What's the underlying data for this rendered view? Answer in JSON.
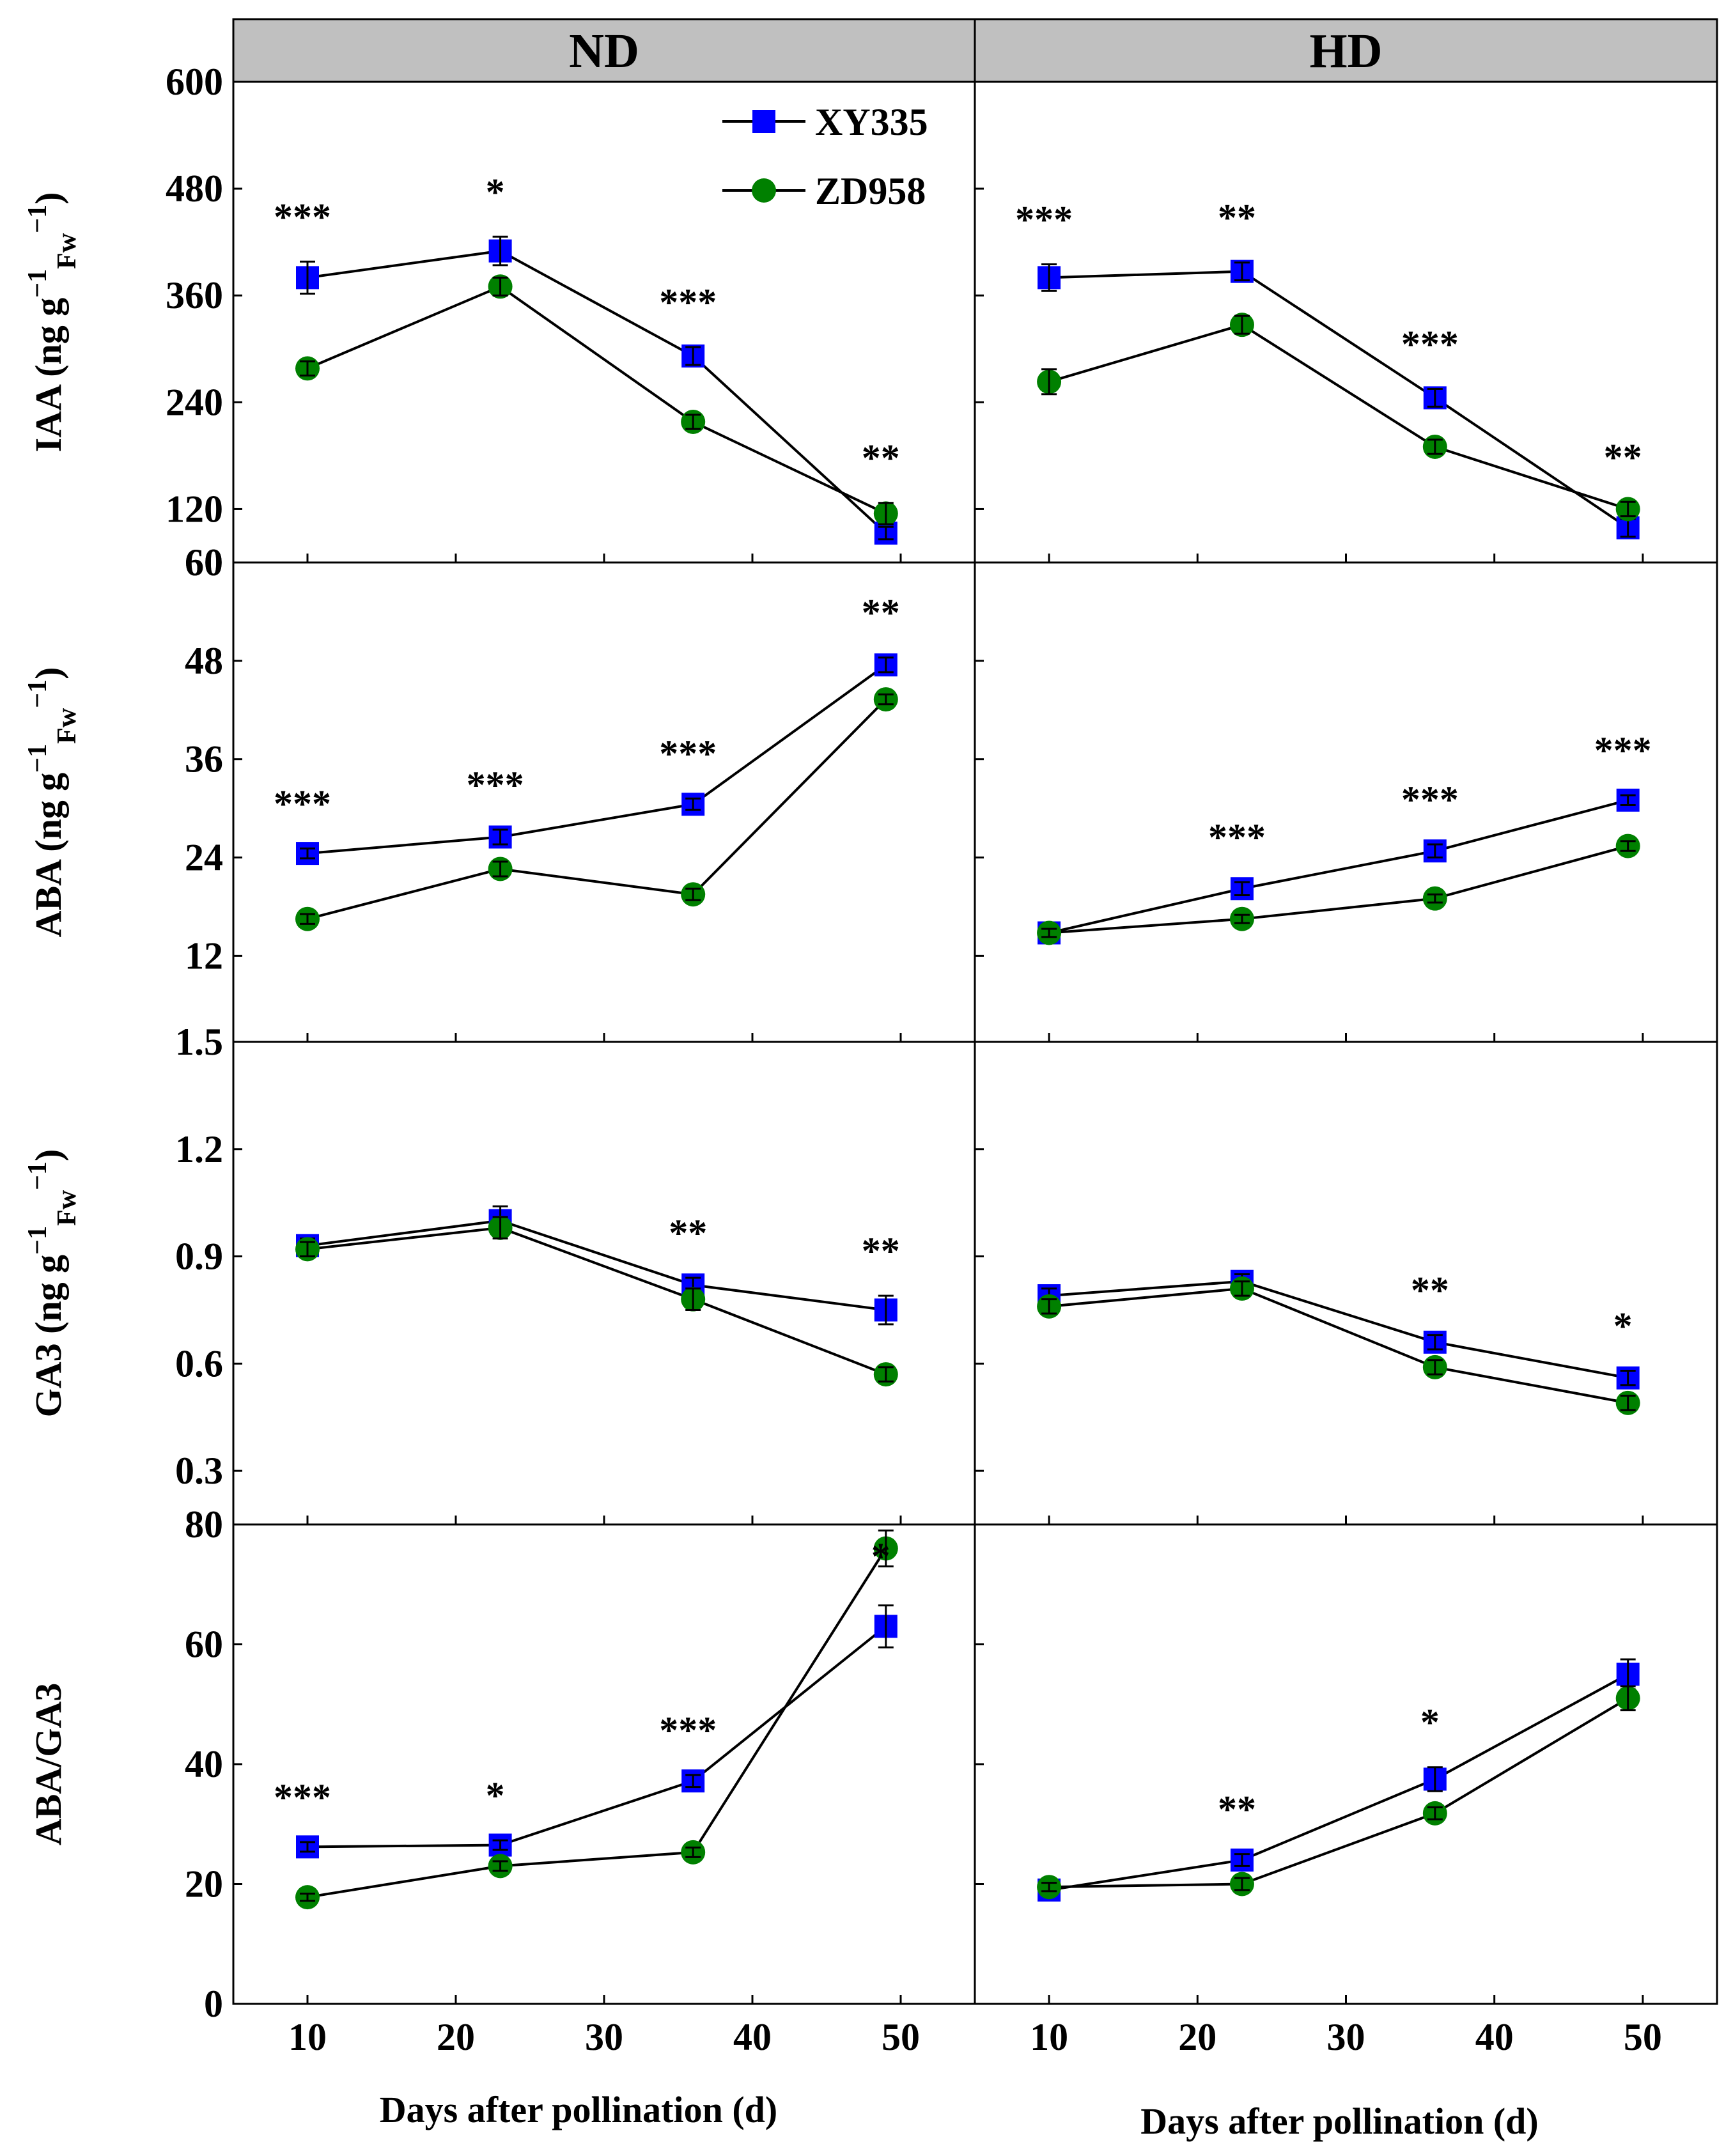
{
  "chart_data": {
    "type": "line",
    "xlabel": "Days after pollination (d)",
    "x": [
      10,
      23,
      36,
      49
    ],
    "x_ticks": [
      10,
      20,
      30,
      40,
      50
    ],
    "xlim": [
      5,
      55
    ],
    "columns": [
      {
        "key": "ND",
        "title": "ND"
      },
      {
        "key": "HD",
        "title": "HD"
      }
    ],
    "legend": {
      "position": "top-right of first panel",
      "entries": [
        {
          "name": "XY335",
          "marker": "square",
          "color": "#0000ff"
        },
        {
          "name": "ZD958",
          "marker": "circle",
          "color": "#008000"
        }
      ]
    },
    "rows": [
      {
        "key": "IAA",
        "ylabel_main": "IAA (ng g",
        "ylabel_sup": "−1",
        "ylabel_sub": "Fw",
        "ylabel_sup2": "−1",
        "ylabel_end": ")",
        "ylim": [
          60,
          600
        ],
        "y_ticks": [
          60,
          120,
          240,
          360,
          480,
          600
        ],
        "y_tick_labels": [
          "60",
          "120",
          "240",
          "360",
          "480",
          "600"
        ],
        "panels": {
          "ND": {
            "series": [
              {
                "name": "XY335",
                "values": [
                  380,
                  410,
                  292,
                  93
                ],
                "errors": [
                  18,
                  16,
                  10,
                  7
                ]
              },
              {
                "name": "ZD958",
                "values": [
                  278,
                  370,
                  218,
                  115
                ],
                "errors": [
                  8,
                  10,
                  8,
                  12
                ]
              }
            ],
            "significance": [
              "***",
              "*",
              "***",
              "**"
            ]
          },
          "HD": {
            "series": [
              {
                "name": "XY335",
                "values": [
                  380,
                  387,
                  245,
                  99
                ],
                "errors": [
                  15,
                  10,
                  10,
                  10
                ]
              },
              {
                "name": "ZD958",
                "values": [
                  263,
                  327,
                  190,
                  120
                ],
                "errors": [
                  14,
                  10,
                  8,
                  8
                ]
              }
            ],
            "significance": [
              "***",
              "**",
              "***",
              "**"
            ]
          }
        }
      },
      {
        "key": "ABA",
        "ylabel_main": "ABA (ng g",
        "ylabel_sup": "−1",
        "ylabel_sub": "Fw",
        "ylabel_sup2": "−1",
        "ylabel_end": ")",
        "ylim": [
          1.5,
          60
        ],
        "y_ticks": [
          12,
          24,
          36,
          48,
          60
        ],
        "y_tick_labels": [
          "12",
          "24",
          "36",
          "48",
          "60"
        ],
        "panels": {
          "ND": {
            "series": [
              {
                "name": "XY335",
                "values": [
                  24.5,
                  26.5,
                  30.5,
                  47.5
                ],
                "errors": [
                  0.6,
                  0.9,
                  0.7,
                  0.9
                ]
              },
              {
                "name": "ZD958",
                "values": [
                  16.5,
                  22.6,
                  19.5,
                  43.3
                ],
                "errors": [
                  0.6,
                  0.9,
                  0.7,
                  0.6
                ]
              }
            ],
            "significance": [
              "***",
              "***",
              "***",
              "**"
            ]
          },
          "HD": {
            "series": [
              {
                "name": "XY335",
                "values": [
                  14.8,
                  20.2,
                  24.8,
                  31.0
                ],
                "errors": [
                  0.5,
                  0.8,
                  0.8,
                  0.6
                ]
              },
              {
                "name": "ZD958",
                "values": [
                  14.8,
                  16.5,
                  19.0,
                  25.4
                ],
                "errors": [
                  0.5,
                  0.5,
                  0.5,
                  0.6
                ]
              }
            ],
            "significance": [
              "",
              "***",
              "***",
              "***"
            ]
          }
        }
      },
      {
        "key": "GA3",
        "ylabel_main": "GA3 (ng g",
        "ylabel_sup": "−1",
        "ylabel_sub": "Fw",
        "ylabel_sup2": "−1",
        "ylabel_end": ")",
        "ylim": [
          0.15,
          1.5
        ],
        "y_ticks": [
          0.3,
          0.6,
          0.9,
          1.2,
          1.5
        ],
        "y_tick_labels": [
          "0.3",
          "0.6",
          "0.9",
          "1.2",
          "1.5"
        ],
        "panels": {
          "ND": {
            "series": [
              {
                "name": "XY335",
                "values": [
                  0.93,
                  1.0,
                  0.82,
                  0.75
                ],
                "errors": [
                  0.02,
                  0.04,
                  0.02,
                  0.04
                ]
              },
              {
                "name": "ZD958",
                "values": [
                  0.92,
                  0.98,
                  0.78,
                  0.57
                ],
                "errors": [
                  0.02,
                  0.03,
                  0.03,
                  0.02
                ]
              }
            ],
            "significance": [
              "",
              "",
              "**",
              "**"
            ]
          },
          "HD": {
            "series": [
              {
                "name": "XY335",
                "values": [
                  0.79,
                  0.83,
                  0.66,
                  0.56
                ],
                "errors": [
                  0.02,
                  0.02,
                  0.02,
                  0.02
                ]
              },
              {
                "name": "ZD958",
                "values": [
                  0.76,
                  0.81,
                  0.59,
                  0.49
                ],
                "errors": [
                  0.02,
                  0.02,
                  0.02,
                  0.02
                ]
              }
            ],
            "significance": [
              "",
              "",
              "**",
              "*"
            ]
          }
        }
      },
      {
        "key": "ABA/GA3",
        "ylabel_main": "ABA/GA3",
        "ylabel_sup": "",
        "ylabel_sub": "",
        "ylabel_sup2": "",
        "ylabel_end": "",
        "ylim": [
          0,
          80
        ],
        "y_ticks": [
          0,
          20,
          40,
          60,
          80
        ],
        "y_tick_labels": [
          "0",
          "20",
          "40",
          "60",
          "80"
        ],
        "panels": {
          "ND": {
            "series": [
              {
                "name": "XY335",
                "values": [
                  26.2,
                  26.5,
                  37.2,
                  63.0
                ],
                "errors": [
                  0.8,
                  0.8,
                  1.0,
                  3.5
                ]
              },
              {
                "name": "ZD958",
                "values": [
                  17.8,
                  23.0,
                  25.3,
                  76.0
                ],
                "errors": [
                  0.6,
                  0.8,
                  0.8,
                  3.0
                ]
              }
            ],
            "significance": [
              "***",
              "*",
              "***",
              "*"
            ]
          },
          "HD": {
            "series": [
              {
                "name": "XY335",
                "values": [
                  19.0,
                  24.0,
                  37.5,
                  55.0
                ],
                "errors": [
                  0.7,
                  1.0,
                  2.0,
                  2.5
                ]
              },
              {
                "name": "ZD958",
                "values": [
                  19.5,
                  20.0,
                  31.8,
                  51.0
                ],
                "errors": [
                  0.7,
                  1.0,
                  1.0,
                  2.0
                ]
              }
            ],
            "significance": [
              "",
              "**",
              "*",
              ""
            ]
          }
        }
      }
    ]
  }
}
